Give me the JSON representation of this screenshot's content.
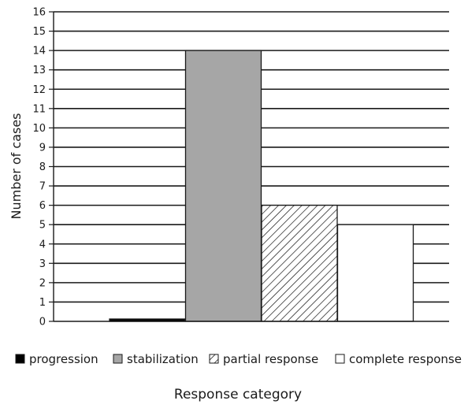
{
  "chart_data": {
    "type": "bar",
    "title": "",
    "xlabel": "Response category",
    "ylabel": "Number of cases",
    "ylim": [
      0,
      16
    ],
    "yticks": [
      0,
      1,
      2,
      3,
      4,
      5,
      6,
      7,
      8,
      9,
      10,
      11,
      12,
      13,
      14,
      15,
      16
    ],
    "grid": true,
    "legend_position": "bottom",
    "series": [
      {
        "name": "progression",
        "value": 0.1,
        "fill": "#000000",
        "pattern": "solid"
      },
      {
        "name": "stabilization",
        "value": 14,
        "fill": "#a6a6a6",
        "pattern": "solid"
      },
      {
        "name": "partial response",
        "value": 6,
        "fill": "#ffffff",
        "pattern": "diagonal-hatch"
      },
      {
        "name": "complete response",
        "value": 5,
        "fill": "#ffffff",
        "pattern": "solid"
      }
    ]
  }
}
